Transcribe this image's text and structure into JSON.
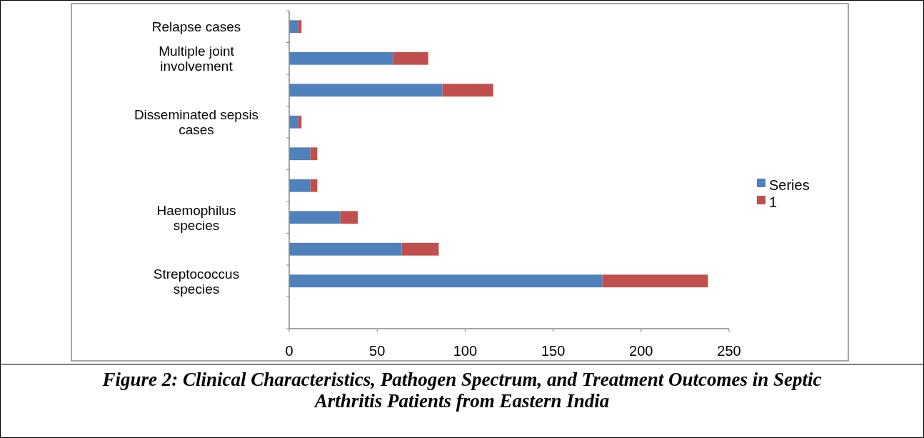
{
  "chart_data": {
    "type": "bar",
    "orientation": "horizontal",
    "stacked": true,
    "categories": [
      "Relapse cases",
      "Multiple joint involvement",
      null,
      "Disseminated sepsis cases",
      null,
      null,
      "Haemophilus species",
      null,
      "Streptococcus species",
      null
    ],
    "series": [
      {
        "name": "Series",
        "color": "#4f81bd",
        "values": [
          5,
          59,
          87,
          5,
          12,
          12,
          29,
          64,
          178,
          null
        ]
      },
      {
        "name": "1",
        "color": "#c0504d",
        "values": [
          2,
          20,
          29,
          2,
          4,
          4,
          10,
          21,
          60,
          null
        ]
      }
    ],
    "xlim": [
      0,
      250
    ],
    "xticks": [
      0,
      50,
      100,
      150,
      200,
      250
    ],
    "grid": false,
    "legend": "right",
    "annotations": [
      "Figure 2: Clinical Characteristics, Pathogen Spectrum, and Treatment Outcomes in Septic Arthritis Patients from Eastern India"
    ]
  }
}
